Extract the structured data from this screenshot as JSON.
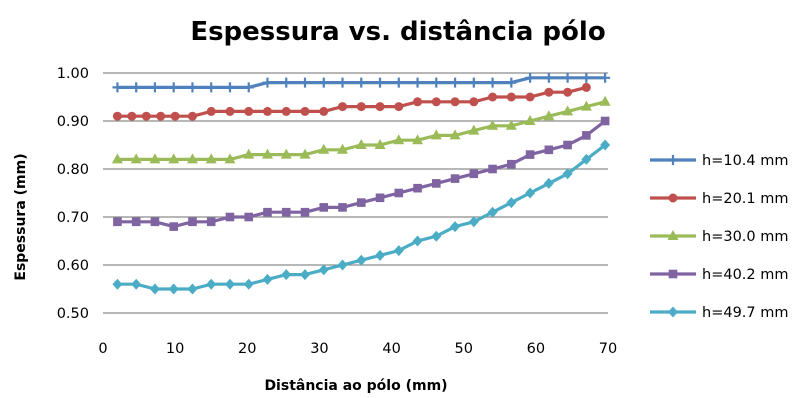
{
  "chart_data": {
    "type": "line",
    "title": "Espessura vs. distância pólo",
    "xlabel": "Distância ao pólo (mm)",
    "ylabel": "Espessura (mm)",
    "xlim": [
      0,
      70
    ],
    "ylim": [
      0.5,
      1.0
    ],
    "xticks": [
      "0",
      "10",
      "20",
      "30",
      "40",
      "50",
      "60",
      "70"
    ],
    "yticks": [
      "0.50",
      "0.60",
      "0.70",
      "0.80",
      "0.90",
      "1.00"
    ],
    "grid": "horizontal",
    "legend_position": "right",
    "x": [
      2,
      4.6,
      7.2,
      9.8,
      12.4,
      15,
      17.6,
      20.2,
      22.8,
      25.4,
      28,
      30.6,
      33.2,
      35.8,
      38.4,
      41,
      43.6,
      46.2,
      48.8,
      51.4,
      54,
      56.6,
      59.2,
      61.8,
      64.4,
      67,
      69.6
    ],
    "series": [
      {
        "name": "h=10.4 mm",
        "color": "#4F81BD",
        "marker": "plus",
        "x": [
          2,
          4.6,
          7.2,
          9.8,
          12.4,
          15,
          17.6,
          20.2,
          22.8,
          25.4,
          28,
          30.6,
          33.2,
          35.8,
          38.4,
          41,
          43.6,
          46.2,
          48.8,
          51.4,
          54,
          56.6,
          59.2,
          61.8,
          64.4,
          67,
          69.6
        ],
        "values": [
          0.97,
          0.97,
          0.97,
          0.97,
          0.97,
          0.97,
          0.97,
          0.97,
          0.98,
          0.98,
          0.98,
          0.98,
          0.98,
          0.98,
          0.98,
          0.98,
          0.98,
          0.98,
          0.98,
          0.98,
          0.98,
          0.98,
          0.99,
          0.99,
          0.99,
          0.99,
          0.99
        ]
      },
      {
        "name": "h=20.1 mm",
        "color": "#C0504D",
        "marker": "circle",
        "x": [
          2,
          4,
          6,
          8,
          10,
          12.4,
          15,
          17.6,
          20.2,
          22.8,
          25.4,
          28,
          30.6,
          33.2,
          35.8,
          38.4,
          41,
          43.6,
          46.2,
          48.8,
          51.4,
          54,
          56.6,
          59.2,
          61.8,
          64.4,
          67
        ],
        "values": [
          0.91,
          0.91,
          0.91,
          0.91,
          0.91,
          0.91,
          0.92,
          0.92,
          0.92,
          0.92,
          0.92,
          0.92,
          0.92,
          0.93,
          0.93,
          0.93,
          0.93,
          0.94,
          0.94,
          0.94,
          0.94,
          0.95,
          0.95,
          0.95,
          0.96,
          0.96,
          0.97
        ]
      },
      {
        "name": "h=30.0 mm",
        "color": "#9BBB59",
        "marker": "triangle",
        "x": [
          2,
          4.6,
          7.2,
          9.8,
          12.4,
          15,
          17.6,
          20.2,
          22.8,
          25.4,
          28,
          30.6,
          33.2,
          35.8,
          38.4,
          41,
          43.6,
          46.2,
          48.8,
          51.4,
          54,
          56.6,
          59.2,
          61.8,
          64.4,
          67,
          69.6
        ],
        "values": [
          0.82,
          0.82,
          0.82,
          0.82,
          0.82,
          0.82,
          0.82,
          0.83,
          0.83,
          0.83,
          0.83,
          0.84,
          0.84,
          0.85,
          0.85,
          0.86,
          0.86,
          0.87,
          0.87,
          0.88,
          0.89,
          0.89,
          0.9,
          0.91,
          0.92,
          0.93,
          0.94
        ]
      },
      {
        "name": "h=40.2 mm",
        "color": "#8064A2",
        "marker": "square",
        "x": [
          2,
          4.6,
          7.2,
          9.8,
          12.4,
          15,
          17.6,
          20.2,
          22.8,
          25.4,
          28,
          30.6,
          33.2,
          35.8,
          38.4,
          41,
          43.6,
          46.2,
          48.8,
          51.4,
          54,
          56.6,
          59.2,
          61.8,
          64.4,
          67,
          69.6
        ],
        "values": [
          0.69,
          0.69,
          0.69,
          0.68,
          0.69,
          0.69,
          0.7,
          0.7,
          0.71,
          0.71,
          0.71,
          0.72,
          0.72,
          0.73,
          0.74,
          0.75,
          0.76,
          0.77,
          0.78,
          0.79,
          0.8,
          0.81,
          0.83,
          0.84,
          0.85,
          0.87,
          0.9
        ]
      },
      {
        "name": "h=49.7 mm",
        "color": "#4BACC6",
        "marker": "diamond",
        "x": [
          2,
          4.6,
          7.2,
          9.8,
          12.4,
          15,
          17.6,
          20.2,
          22.8,
          25.4,
          28,
          30.6,
          33.2,
          35.8,
          38.4,
          41,
          43.6,
          46.2,
          48.8,
          51.4,
          54,
          56.6,
          59.2,
          61.8,
          64.4,
          67,
          69.6
        ],
        "values": [
          0.56,
          0.56,
          0.55,
          0.55,
          0.55,
          0.56,
          0.56,
          0.56,
          0.57,
          0.58,
          0.58,
          0.59,
          0.6,
          0.61,
          0.62,
          0.63,
          0.65,
          0.66,
          0.68,
          0.69,
          0.71,
          0.73,
          0.75,
          0.77,
          0.79,
          0.82,
          0.85
        ]
      }
    ]
  }
}
